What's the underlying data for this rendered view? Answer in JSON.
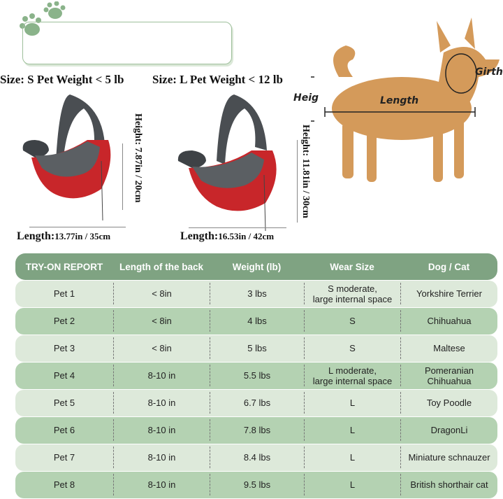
{
  "sizes": [
    {
      "label": "Size: S Pet Weight < 5 lb",
      "height": "Height: 7.87in / 20cm",
      "length_label": "Length:",
      "length_value": "13.77in / 35cm"
    },
    {
      "label": "Size: L Pet Weight < 12 lb",
      "height": "Height: 11.81in / 30cm",
      "length_label": "Length:",
      "length_value": "16.53in / 42cm"
    }
  ],
  "dog_labels": {
    "height": "Heig",
    "length": "Length",
    "girth": "Girth"
  },
  "colors": {
    "header": "#7fa382",
    "row_light": "#dde9da",
    "row_dark": "#b4d2b2",
    "bag_red": "#c8262a",
    "bag_gray": "#555a5e",
    "paw": "#8ab38a"
  },
  "table": {
    "headers": [
      "TRY-ON REPORT",
      "Length of the back",
      "Weight (lb)",
      "Wear Size",
      "Dog / Cat"
    ],
    "rows": [
      [
        "Pet 1",
        "< 8in",
        "3 lbs",
        "S moderate,\nlarge internal space",
        "Yorkshire Terrier"
      ],
      [
        "Pet 2",
        "< 8in",
        "4 lbs",
        "S",
        "Chihuahua"
      ],
      [
        "Pet 3",
        "< 8in",
        "5 lbs",
        "S",
        "Maltese"
      ],
      [
        "Pet 4",
        "8-10 in",
        "5.5 lbs",
        "L moderate,\nlarge internal space",
        "Pomeranian\nChihuahua"
      ],
      [
        "Pet 5",
        "8-10 in",
        "6.7 lbs",
        "L",
        "Toy Poodle"
      ],
      [
        "Pet 6",
        "8-10 in",
        "7.8 lbs",
        "L",
        "DragonLi"
      ],
      [
        "Pet 7",
        "8-10 in",
        "8.4 lbs",
        "L",
        "Miniature schnauzer"
      ],
      [
        "Pet 8",
        "8-10 in",
        "9.5 lbs",
        "L",
        "British shorthair cat"
      ]
    ]
  }
}
